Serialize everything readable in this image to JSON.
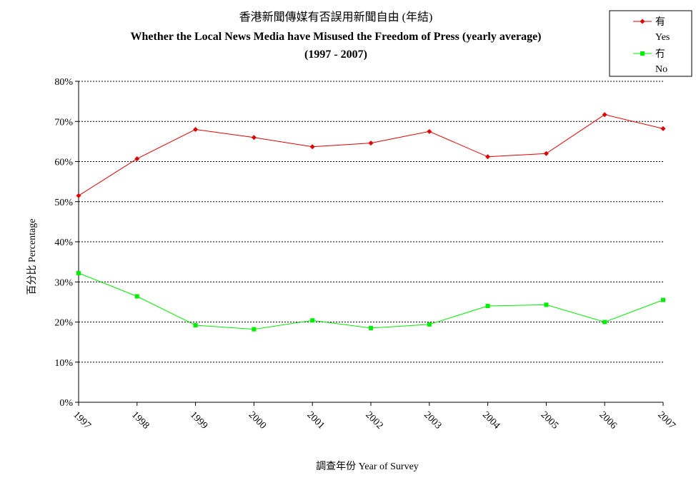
{
  "chart_data": {
    "type": "line",
    "title": "香港新聞傳媒有否誤用新聞自由 (年結)",
    "subtitle": "Whether the Local News Media have Misused the Freedom of Press  (yearly average)",
    "subtitle2": "(1997 - 2007)",
    "xlabel": "調查年份 Year of Survey",
    "ylabel": "百分比 Percentage",
    "x": [
      "1997",
      "1998",
      "1999",
      "2000",
      "2001",
      "2002",
      "2003",
      "2004",
      "2005",
      "2006",
      "2007"
    ],
    "ylim": [
      0,
      80
    ],
    "yticks": [
      "0%",
      "10%",
      "20%",
      "30%",
      "40%",
      "50%",
      "60%",
      "70%",
      "80%"
    ],
    "grid": true,
    "legend_position": "top-right",
    "series": [
      {
        "name": "有",
        "name_en": "Yes",
        "color": "#e00000",
        "marker": "diamond",
        "values": [
          51.5,
          60.7,
          68.0,
          66.0,
          63.7,
          64.6,
          67.5,
          61.2,
          62.0,
          71.7,
          68.2
        ]
      },
      {
        "name": "冇",
        "name_en": "No",
        "color": "#00ee00",
        "marker": "square",
        "values": [
          32.2,
          26.4,
          19.2,
          18.2,
          20.4,
          18.5,
          19.4,
          24.0,
          24.3,
          20.0,
          25.5
        ]
      }
    ]
  }
}
